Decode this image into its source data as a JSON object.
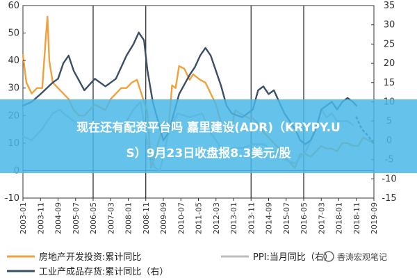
{
  "banner": {
    "line1": "现在还有配资平台吗 嘉里建设(ADR)（KRYPY.U",
    "line2": "S）9月23日收盘报8.3美元/股"
  },
  "watermark": "香涛宏观笔记",
  "chart_data": {
    "type": "line",
    "x_ticks": [
      "2003-01",
      "2003-11",
      "2004-09",
      "2005-07",
      "2006-05",
      "2007-03",
      "2008-01",
      "2008-11",
      "2009-09",
      "2010-07",
      "2011-05",
      "2012-03",
      "2013-01",
      "2013-11",
      "2014-09",
      "2015-07",
      "2016-05",
      "2017-03",
      "2018-01",
      "2018-11",
      "2019-09"
    ],
    "x_range": [
      "2003-01",
      "2019-09"
    ],
    "y_left": {
      "range": [
        -10,
        60
      ],
      "ticks": [
        -10,
        0,
        10,
        20,
        30,
        40,
        50,
        60
      ]
    },
    "y_right": {
      "range": [
        -15,
        35
      ],
      "ticks": [
        -15,
        -10,
        -5,
        0,
        5,
        10,
        15,
        20,
        25,
        30,
        35
      ]
    },
    "vertical_lines": [
      "2006-05",
      "2008-11",
      "2013-11",
      "2016-05"
    ],
    "legend_placement": "bottom",
    "series": [
      {
        "name": "房地产开发投资:累计同比",
        "axis": "left",
        "color": "#f0a13c",
        "style": "solid",
        "points": [
          [
            "2003-01",
            42
          ],
          [
            "2003-03",
            32
          ],
          [
            "2003-06",
            28
          ],
          [
            "2003-09",
            30
          ],
          [
            "2003-12",
            30
          ],
          [
            "2004-02",
            48
          ],
          [
            "2004-03",
            56
          ],
          [
            "2004-04",
            40
          ],
          [
            "2004-06",
            32
          ],
          [
            "2004-09",
            30
          ],
          [
            "2004-12",
            28
          ],
          [
            "2005-03",
            26
          ],
          [
            "2005-06",
            22
          ],
          [
            "2005-09",
            20
          ],
          [
            "2005-12",
            20
          ],
          [
            "2006-03",
            22
          ],
          [
            "2006-06",
            24
          ],
          [
            "2006-09",
            23
          ],
          [
            "2006-12",
            22
          ],
          [
            "2007-03",
            26
          ],
          [
            "2007-06",
            28
          ],
          [
            "2007-09",
            30
          ],
          [
            "2007-12",
            30
          ],
          [
            "2008-03",
            32
          ],
          [
            "2008-06",
            33
          ],
          [
            "2008-09",
            27
          ],
          [
            "2008-12",
            21
          ],
          [
            "2009-02",
            1
          ],
          [
            "2009-04",
            5
          ],
          [
            "2009-06",
            10
          ],
          [
            "2009-08",
            14
          ],
          [
            "2009-10",
            18
          ],
          [
            "2009-12",
            16
          ],
          [
            "2010-02",
            31
          ],
          [
            "2010-04",
            30
          ],
          [
            "2010-06",
            38
          ],
          [
            "2010-09",
            37
          ],
          [
            "2010-12",
            33
          ],
          [
            "2011-02",
            35
          ],
          [
            "2011-04",
            34
          ],
          [
            "2011-06",
            33
          ],
          [
            "2011-09",
            32
          ],
          [
            "2011-12",
            28
          ],
          [
            "2012-03",
            24
          ],
          [
            "2012-06",
            17
          ],
          [
            "2012-09",
            15
          ],
          [
            "2012-12",
            16
          ],
          [
            "2013-02",
            22
          ],
          [
            "2013-04",
            21
          ],
          [
            "2013-07",
            20
          ],
          [
            "2013-10",
            19
          ],
          [
            "2013-12",
            19
          ],
          [
            "2014-03",
            17
          ],
          [
            "2014-06",
            14
          ],
          [
            "2014-09",
            12
          ],
          [
            "2014-12",
            10
          ],
          [
            "2015-03",
            8
          ],
          [
            "2015-06",
            5
          ],
          [
            "2015-09",
            3
          ],
          [
            "2015-12",
            1
          ],
          [
            "2016-03",
            6
          ],
          [
            "2016-06",
            6
          ],
          [
            "2016-09",
            5
          ],
          [
            "2016-12",
            7
          ],
          [
            "2017-03",
            9
          ],
          [
            "2017-06",
            8
          ],
          [
            "2017-09",
            8
          ],
          [
            "2017-12",
            7
          ],
          [
            "2018-03",
            10
          ],
          [
            "2018-06",
            10
          ],
          [
            "2018-09",
            9
          ],
          [
            "2018-12",
            9
          ],
          [
            "2019-03",
            12
          ],
          [
            "2019-06",
            11
          ],
          [
            "2019-09",
            10
          ]
        ]
      },
      {
        "name": "PPI:当月同比（右）",
        "axis": "right",
        "color": "#bdbdbd",
        "style": "solid",
        "points": [
          [
            "2003-01",
            1
          ],
          [
            "2003-06",
            0
          ],
          [
            "2003-12",
            3
          ],
          [
            "2004-06",
            7
          ],
          [
            "2004-10",
            8
          ],
          [
            "2004-12",
            7
          ],
          [
            "2005-06",
            5
          ],
          [
            "2005-12",
            3
          ],
          [
            "2006-06",
            4
          ],
          [
            "2006-12",
            3
          ],
          [
            "2007-06",
            2
          ],
          [
            "2007-12",
            5
          ],
          [
            "2008-04",
            8
          ],
          [
            "2008-08",
            10
          ],
          [
            "2008-12",
            -1
          ],
          [
            "2009-04",
            -7
          ],
          [
            "2009-07",
            -8
          ],
          [
            "2009-12",
            2
          ],
          [
            "2010-05",
            7
          ],
          [
            "2010-12",
            6
          ],
          [
            "2011-07",
            7
          ],
          [
            "2011-12",
            2
          ],
          [
            "2012-06",
            -2
          ],
          [
            "2012-09",
            -3
          ],
          [
            "2012-12",
            -2
          ],
          [
            "2013-06",
            -2
          ],
          [
            "2013-12",
            -1
          ],
          [
            "2014-06",
            -1
          ],
          [
            "2014-12",
            -3
          ],
          [
            "2015-06",
            -5
          ],
          [
            "2015-12",
            -6
          ],
          [
            "2016-06",
            -3
          ],
          [
            "2016-12",
            3
          ],
          [
            "2017-03",
            8
          ],
          [
            "2017-06",
            6
          ],
          [
            "2017-09",
            7
          ],
          [
            "2017-12",
            5
          ],
          [
            "2018-06",
            5
          ],
          [
            "2018-09",
            4
          ]
        ]
      },
      {
        "name": "工业产成品存货:累计同比（右）",
        "axis": "right",
        "color": "#3a4e66",
        "style": "solid",
        "points": [
          [
            "2003-01",
            9
          ],
          [
            "2003-06",
            10
          ],
          [
            "2003-11",
            12
          ],
          [
            "2004-06",
            15
          ],
          [
            "2004-09",
            16
          ],
          [
            "2004-12",
            20
          ],
          [
            "2005-03",
            22
          ],
          [
            "2005-06",
            18
          ],
          [
            "2005-12",
            13
          ],
          [
            "2006-06",
            16
          ],
          [
            "2006-12",
            14
          ],
          [
            "2007-06",
            16
          ],
          [
            "2007-12",
            22
          ],
          [
            "2008-04",
            25
          ],
          [
            "2008-07",
            28
          ],
          [
            "2008-10",
            26
          ],
          [
            "2008-12",
            18
          ],
          [
            "2009-03",
            10
          ],
          [
            "2009-06",
            5
          ],
          [
            "2009-09",
            0
          ],
          [
            "2009-12",
            2
          ],
          [
            "2010-06",
            12
          ],
          [
            "2010-12",
            17
          ],
          [
            "2011-03",
            19
          ],
          [
            "2011-06",
            22
          ],
          [
            "2011-09",
            24
          ],
          [
            "2011-12",
            22
          ],
          [
            "2012-03",
            18
          ],
          [
            "2012-06",
            14
          ],
          [
            "2012-09",
            9
          ],
          [
            "2012-12",
            7
          ],
          [
            "2013-06",
            6
          ],
          [
            "2013-12",
            8
          ],
          [
            "2014-03",
            13
          ],
          [
            "2014-06",
            14
          ],
          [
            "2014-09",
            12
          ],
          [
            "2014-12",
            13
          ],
          [
            "2015-06",
            7
          ],
          [
            "2015-12",
            3
          ],
          [
            "2016-03",
            0
          ],
          [
            "2016-06",
            -1
          ],
          [
            "2016-09",
            0
          ],
          [
            "2016-12",
            3
          ],
          [
            "2017-03",
            8
          ],
          [
            "2017-06",
            9
          ],
          [
            "2017-09",
            10
          ],
          [
            "2017-12",
            8
          ],
          [
            "2018-03",
            10
          ],
          [
            "2018-06",
            11
          ],
          [
            "2018-09",
            10
          ],
          [
            "2018-11",
            9
          ]
        ]
      },
      {
        "name": "工业产成品存货:累计同比（右）",
        "axis": "right",
        "color": "#3a4e66",
        "style": "dotted",
        "points": [
          [
            "2018-11",
            6
          ],
          [
            "2019-02",
            3
          ],
          [
            "2019-06",
            1
          ],
          [
            "2019-09",
            -1
          ]
        ]
      }
    ]
  },
  "legend": [
    {
      "label": "房地产开发投资:累计同比",
      "color": "#f0a13c"
    },
    {
      "label": "PPI:当月同比（右）",
      "color": "#bdbdbd"
    },
    {
      "label": "工业产成品存货:累计同比（右）",
      "color": "#3a4e66"
    }
  ]
}
